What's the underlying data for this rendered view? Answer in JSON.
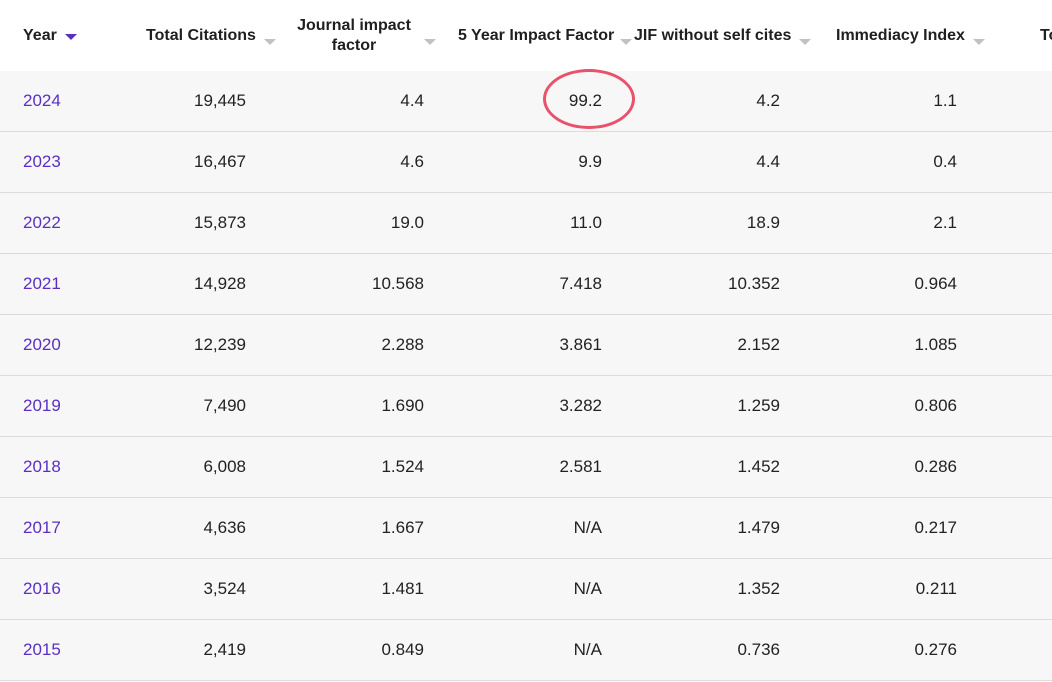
{
  "table": {
    "columns": [
      {
        "key": "year",
        "label": "Year",
        "sort": "desc"
      },
      {
        "key": "total_citations",
        "label": "Total Citations"
      },
      {
        "key": "jif",
        "label": "Journal impact factor"
      },
      {
        "key": "five_year_if",
        "label": "5 Year Impact Factor"
      },
      {
        "key": "jif_no_self",
        "label": "JIF without self cites"
      },
      {
        "key": "immediacy",
        "label": "Immediacy Index"
      },
      {
        "key": "truncated",
        "label": "To"
      }
    ],
    "rows": [
      {
        "year": "2024",
        "total_citations": "19,445",
        "jif": "4.4",
        "five_year_if": "99.2",
        "jif_no_self": "4.2",
        "immediacy": "1.1"
      },
      {
        "year": "2023",
        "total_citations": "16,467",
        "jif": "4.6",
        "five_year_if": "9.9",
        "jif_no_self": "4.4",
        "immediacy": "0.4"
      },
      {
        "year": "2022",
        "total_citations": "15,873",
        "jif": "19.0",
        "five_year_if": "11.0",
        "jif_no_self": "18.9",
        "immediacy": "2.1"
      },
      {
        "year": "2021",
        "total_citations": "14,928",
        "jif": "10.568",
        "five_year_if": "7.418",
        "jif_no_self": "10.352",
        "immediacy": "0.964"
      },
      {
        "year": "2020",
        "total_citations": "12,239",
        "jif": "2.288",
        "five_year_if": "3.861",
        "jif_no_self": "2.152",
        "immediacy": "1.085"
      },
      {
        "year": "2019",
        "total_citations": "7,490",
        "jif": "1.690",
        "five_year_if": "3.282",
        "jif_no_self": "1.259",
        "immediacy": "0.806"
      },
      {
        "year": "2018",
        "total_citations": "6,008",
        "jif": "1.524",
        "five_year_if": "2.581",
        "jif_no_self": "1.452",
        "immediacy": "0.286"
      },
      {
        "year": "2017",
        "total_citations": "4,636",
        "jif": "1.667",
        "five_year_if": "N/A",
        "jif_no_self": "1.479",
        "immediacy": "0.217"
      },
      {
        "year": "2016",
        "total_citations": "3,524",
        "jif": "1.481",
        "five_year_if": "N/A",
        "jif_no_self": "1.352",
        "immediacy": "0.211"
      },
      {
        "year": "2015",
        "total_citations": "2,419",
        "jif": "0.849",
        "five_year_if": "N/A",
        "jif_no_self": "0.736",
        "immediacy": "0.276"
      }
    ]
  },
  "annotation": {
    "circled_cell": "99.2",
    "color": "#e8526a"
  },
  "colors": {
    "link": "#5b2fc2",
    "row_bg": "#f7f7f7",
    "divider": "#dcdcdc"
  }
}
